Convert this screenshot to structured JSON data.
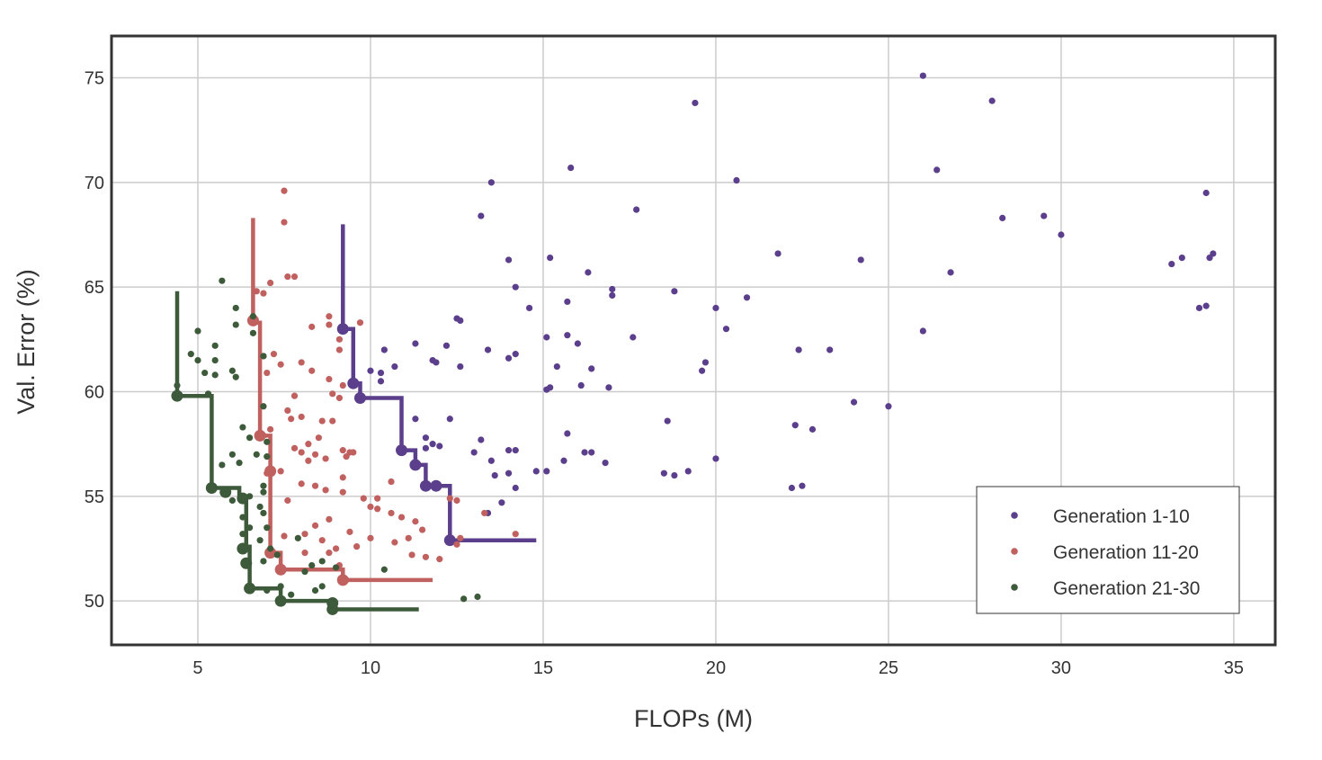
{
  "chart_data": {
    "type": "scatter",
    "title": "",
    "xlabel": "FLOPs (M)",
    "ylabel": "Val. Error (%)",
    "xlim": [
      2.5,
      36.2
    ],
    "ylim": [
      47.9,
      77.0
    ],
    "xticks": [
      5,
      10,
      15,
      20,
      25,
      30,
      35
    ],
    "yticks": [
      50,
      55,
      60,
      65,
      70,
      75
    ],
    "xtick_labels": [
      "5",
      "10",
      "15",
      "20",
      "25",
      "30",
      "35"
    ],
    "ytick_labels": [
      "50",
      "55",
      "60",
      "65",
      "70",
      "75"
    ],
    "grid": true,
    "legend_position": "bottom-right",
    "series": [
      {
        "name": "Generation 1-10",
        "color": "#5b3f8c",
        "points": [
          [
            26.0,
            75.1
          ],
          [
            19.4,
            73.8
          ],
          [
            28.0,
            73.9
          ],
          [
            15.8,
            70.7
          ],
          [
            20.6,
            70.1
          ],
          [
            13.5,
            70.0
          ],
          [
            26.4,
            70.6
          ],
          [
            34.2,
            69.5
          ],
          [
            17.7,
            68.7
          ],
          [
            13.2,
            68.4
          ],
          [
            28.3,
            68.3
          ],
          [
            29.5,
            68.4
          ],
          [
            30.0,
            67.5
          ],
          [
            21.8,
            66.6
          ],
          [
            14.0,
            66.3
          ],
          [
            15.2,
            66.4
          ],
          [
            24.2,
            66.3
          ],
          [
            33.2,
            66.1
          ],
          [
            33.5,
            66.4
          ],
          [
            34.4,
            66.6
          ],
          [
            34.3,
            66.4
          ],
          [
            16.3,
            65.7
          ],
          [
            26.8,
            65.7
          ],
          [
            14.2,
            65.0
          ],
          [
            17.0,
            64.9
          ],
          [
            18.8,
            64.8
          ],
          [
            17.0,
            64.6
          ],
          [
            20.9,
            64.5
          ],
          [
            15.7,
            64.3
          ],
          [
            34.0,
            64.0
          ],
          [
            34.2,
            64.1
          ],
          [
            20.0,
            64.0
          ],
          [
            14.6,
            64.0
          ],
          [
            12.5,
            63.5
          ],
          [
            12.6,
            63.4
          ],
          [
            20.3,
            63.0
          ],
          [
            26.0,
            62.9
          ],
          [
            15.1,
            62.6
          ],
          [
            15.7,
            62.7
          ],
          [
            17.6,
            62.6
          ],
          [
            16.0,
            62.3
          ],
          [
            14.2,
            61.8
          ],
          [
            13.4,
            62.0
          ],
          [
            22.4,
            62.0
          ],
          [
            23.3,
            62.0
          ],
          [
            14.0,
            61.6
          ],
          [
            11.8,
            61.5
          ],
          [
            12.2,
            62.2
          ],
          [
            11.3,
            62.3
          ],
          [
            10.4,
            62.0
          ],
          [
            10.7,
            61.2
          ],
          [
            11.9,
            61.4
          ],
          [
            19.7,
            61.4
          ],
          [
            19.6,
            61.0
          ],
          [
            16.4,
            61.1
          ],
          [
            15.4,
            61.2
          ],
          [
            12.6,
            61.2
          ],
          [
            10.0,
            61.0
          ],
          [
            10.3,
            60.9
          ],
          [
            10.3,
            60.5
          ],
          [
            16.1,
            60.3
          ],
          [
            15.1,
            60.1
          ],
          [
            15.2,
            60.2
          ],
          [
            16.9,
            60.2
          ],
          [
            24.0,
            59.5
          ],
          [
            25.0,
            59.3
          ],
          [
            11.3,
            58.7
          ],
          [
            12.3,
            58.7
          ],
          [
            18.6,
            58.6
          ],
          [
            22.3,
            58.4
          ],
          [
            22.8,
            58.2
          ],
          [
            15.7,
            58.0
          ],
          [
            11.6,
            57.8
          ],
          [
            11.8,
            57.5
          ],
          [
            11.6,
            57.3
          ],
          [
            12.0,
            57.4
          ],
          [
            13.2,
            57.7
          ],
          [
            14.0,
            57.2
          ],
          [
            14.2,
            57.2
          ],
          [
            13.0,
            57.1
          ],
          [
            16.2,
            57.1
          ],
          [
            16.4,
            57.1
          ],
          [
            16.8,
            56.6
          ],
          [
            15.6,
            56.7
          ],
          [
            13.5,
            56.7
          ],
          [
            13.6,
            56.0
          ],
          [
            14.0,
            56.1
          ],
          [
            18.5,
            56.1
          ],
          [
            18.8,
            56.0
          ],
          [
            19.2,
            56.2
          ],
          [
            20.0,
            56.8
          ],
          [
            14.8,
            56.2
          ],
          [
            15.1,
            56.2
          ],
          [
            14.2,
            55.4
          ],
          [
            13.8,
            54.7
          ],
          [
            22.2,
            55.4
          ],
          [
            22.5,
            55.5
          ],
          [
            13.4,
            54.2
          ]
        ],
        "frontier": [
          [
            9.2,
            68.0
          ],
          [
            9.2,
            63.0
          ],
          [
            9.5,
            63.0
          ],
          [
            9.5,
            60.4
          ],
          [
            9.7,
            60.4
          ],
          [
            9.7,
            59.7
          ],
          [
            10.9,
            59.7
          ],
          [
            10.9,
            57.2
          ],
          [
            11.3,
            57.2
          ],
          [
            11.3,
            56.5
          ],
          [
            11.6,
            56.5
          ],
          [
            11.6,
            55.5
          ],
          [
            12.3,
            55.5
          ],
          [
            12.3,
            52.9
          ],
          [
            14.8,
            52.9
          ]
        ],
        "frontier_markers": [
          [
            9.2,
            63.0
          ],
          [
            9.5,
            60.4
          ],
          [
            9.7,
            59.7
          ],
          [
            10.9,
            57.2
          ],
          [
            11.3,
            56.5
          ],
          [
            11.6,
            55.5
          ],
          [
            11.9,
            55.5
          ],
          [
            12.3,
            52.9
          ]
        ]
      },
      {
        "name": "Generation 11-20",
        "color": "#c0605f",
        "points": [
          [
            7.5,
            69.6
          ],
          [
            7.5,
            68.1
          ],
          [
            6.7,
            64.8
          ],
          [
            6.9,
            64.7
          ],
          [
            7.1,
            65.2
          ],
          [
            7.6,
            65.5
          ],
          [
            7.8,
            65.5
          ],
          [
            8.8,
            63.6
          ],
          [
            8.8,
            63.2
          ],
          [
            9.1,
            62.5
          ],
          [
            9.1,
            62.0
          ],
          [
            9.7,
            63.3
          ],
          [
            8.3,
            63.1
          ],
          [
            7.2,
            61.8
          ],
          [
            6.9,
            61.7
          ],
          [
            7.4,
            61.3
          ],
          [
            8.0,
            61.4
          ],
          [
            8.3,
            61.0
          ],
          [
            7.0,
            60.9
          ],
          [
            8.8,
            60.6
          ],
          [
            9.2,
            60.3
          ],
          [
            7.8,
            59.8
          ],
          [
            8.9,
            59.9
          ],
          [
            9.1,
            59.7
          ],
          [
            7.6,
            59.1
          ],
          [
            7.7,
            58.7
          ],
          [
            8.0,
            58.8
          ],
          [
            8.6,
            58.6
          ],
          [
            8.9,
            58.6
          ],
          [
            7.1,
            58.2
          ],
          [
            6.9,
            57.9
          ],
          [
            8.5,
            57.8
          ],
          [
            8.2,
            57.5
          ],
          [
            8.0,
            57.1
          ],
          [
            8.4,
            57.0
          ],
          [
            9.2,
            57.2
          ],
          [
            9.4,
            57.1
          ],
          [
            9.5,
            57.1
          ],
          [
            7.8,
            57.3
          ],
          [
            9.3,
            56.9
          ],
          [
            8.2,
            56.7
          ],
          [
            7.4,
            56.2
          ],
          [
            7.0,
            56.1
          ],
          [
            8.7,
            56.8
          ],
          [
            9.2,
            55.9
          ],
          [
            8.0,
            55.6
          ],
          [
            9.2,
            55.2
          ],
          [
            8.4,
            55.5
          ],
          [
            8.7,
            55.3
          ],
          [
            7.6,
            54.8
          ],
          [
            9.8,
            54.9
          ],
          [
            10.2,
            54.9
          ],
          [
            10.6,
            55.7
          ],
          [
            10.0,
            54.5
          ],
          [
            10.2,
            54.4
          ],
          [
            10.6,
            54.2
          ],
          [
            10.9,
            54.0
          ],
          [
            11.3,
            53.8
          ],
          [
            11.5,
            53.4
          ],
          [
            12.3,
            54.9
          ],
          [
            12.5,
            54.8
          ],
          [
            13.3,
            54.2
          ],
          [
            14.2,
            53.2
          ],
          [
            8.4,
            53.6
          ],
          [
            8.8,
            53.9
          ],
          [
            8.1,
            53.2
          ],
          [
            7.5,
            53.1
          ],
          [
            8.6,
            52.9
          ],
          [
            9.4,
            53.3
          ],
          [
            9.6,
            52.6
          ],
          [
            10.0,
            53.0
          ],
          [
            10.7,
            52.8
          ],
          [
            11.1,
            53.0
          ],
          [
            11.2,
            52.2
          ],
          [
            11.6,
            52.1
          ],
          [
            12.0,
            52.0
          ],
          [
            12.6,
            53.0
          ],
          [
            12.5,
            52.7
          ],
          [
            8.1,
            52.3
          ],
          [
            8.8,
            52.3
          ],
          [
            9.0,
            52.5
          ],
          [
            9.1,
            51.7
          ],
          [
            9.3,
            51.0
          ]
        ],
        "frontier": [
          [
            6.6,
            68.3
          ],
          [
            6.6,
            63.3
          ],
          [
            6.8,
            63.3
          ],
          [
            6.8,
            57.9
          ],
          [
            7.1,
            57.9
          ],
          [
            7.1,
            52.3
          ],
          [
            7.4,
            52.3
          ],
          [
            7.4,
            51.5
          ],
          [
            9.2,
            51.5
          ],
          [
            9.2,
            51.0
          ],
          [
            11.8,
            51.0
          ]
        ],
        "frontier_markers": [
          [
            6.6,
            63.4
          ],
          [
            6.8,
            57.9
          ],
          [
            7.1,
            56.2
          ],
          [
            7.1,
            52.3
          ],
          [
            7.4,
            51.5
          ],
          [
            9.2,
            51.0
          ]
        ]
      },
      {
        "name": "Generation 21-30",
        "color": "#3d5a3a",
        "points": [
          [
            5.7,
            65.3
          ],
          [
            6.1,
            64.0
          ],
          [
            6.6,
            63.6
          ],
          [
            6.1,
            63.2
          ],
          [
            5.0,
            62.9
          ],
          [
            6.6,
            62.8
          ],
          [
            5.5,
            62.2
          ],
          [
            4.8,
            61.8
          ],
          [
            5.0,
            61.5
          ],
          [
            5.5,
            61.5
          ],
          [
            6.9,
            61.7
          ],
          [
            5.2,
            60.9
          ],
          [
            6.0,
            61.0
          ],
          [
            6.1,
            60.7
          ],
          [
            5.5,
            60.8
          ],
          [
            5.3,
            59.9
          ],
          [
            6.9,
            59.3
          ],
          [
            6.3,
            58.3
          ],
          [
            6.5,
            57.8
          ],
          [
            7.0,
            57.6
          ],
          [
            6.0,
            57.0
          ],
          [
            6.7,
            57.0
          ],
          [
            7.0,
            56.9
          ],
          [
            5.7,
            56.5
          ],
          [
            6.2,
            56.6
          ],
          [
            6.9,
            55.5
          ],
          [
            6.9,
            55.2
          ],
          [
            6.5,
            55.0
          ],
          [
            6.0,
            54.8
          ],
          [
            6.8,
            54.5
          ],
          [
            6.3,
            54.0
          ],
          [
            6.9,
            54.2
          ],
          [
            6.5,
            53.5
          ],
          [
            6.3,
            53.2
          ],
          [
            7.0,
            53.5
          ],
          [
            6.8,
            52.9
          ],
          [
            7.1,
            52.5
          ],
          [
            7.3,
            52.2
          ],
          [
            6.9,
            51.9
          ],
          [
            6.4,
            51.8
          ],
          [
            7.9,
            53.0
          ],
          [
            8.3,
            51.7
          ],
          [
            8.6,
            51.9
          ],
          [
            9.0,
            51.6
          ],
          [
            10.4,
            51.5
          ],
          [
            8.1,
            51.4
          ],
          [
            8.6,
            50.7
          ],
          [
            8.4,
            50.5
          ],
          [
            7.4,
            50.7
          ],
          [
            7.7,
            50.3
          ],
          [
            7.0,
            50.5
          ],
          [
            12.7,
            50.1
          ],
          [
            13.1,
            50.2
          ],
          [
            8.9,
            49.8
          ],
          [
            4.4,
            60.3
          ]
        ],
        "frontier": [
          [
            4.4,
            64.8
          ],
          [
            4.4,
            59.8
          ],
          [
            5.4,
            59.8
          ],
          [
            5.4,
            55.4
          ],
          [
            6.2,
            55.4
          ],
          [
            6.2,
            54.9
          ],
          [
            6.4,
            54.9
          ],
          [
            6.4,
            52.6
          ],
          [
            6.5,
            52.6
          ],
          [
            6.5,
            50.6
          ],
          [
            7.4,
            50.6
          ],
          [
            7.4,
            50.0
          ],
          [
            8.9,
            50.0
          ],
          [
            8.9,
            49.6
          ],
          [
            11.4,
            49.6
          ]
        ],
        "frontier_markers": [
          [
            4.4,
            59.8
          ],
          [
            5.4,
            55.4
          ],
          [
            5.8,
            55.2
          ],
          [
            6.3,
            54.9
          ],
          [
            6.3,
            52.5
          ],
          [
            6.4,
            51.8
          ],
          [
            6.5,
            50.6
          ],
          [
            7.4,
            50.0
          ],
          [
            8.9,
            49.9
          ],
          [
            8.9,
            49.6
          ]
        ]
      }
    ]
  }
}
